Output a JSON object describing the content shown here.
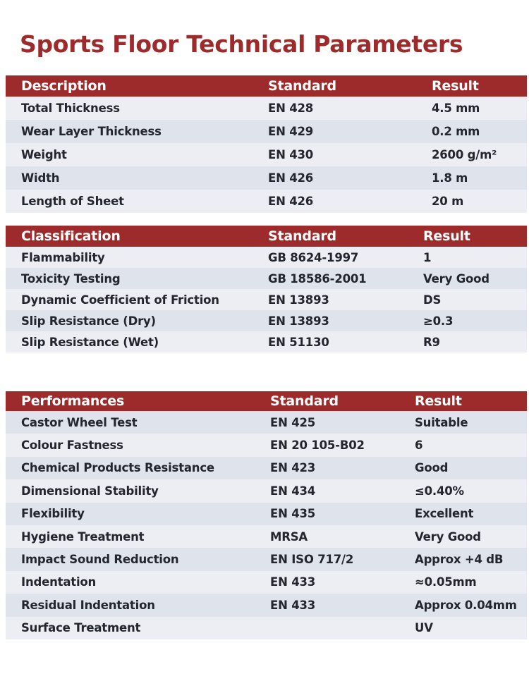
{
  "page": {
    "title": "Sports Floor Technical Parameters"
  },
  "colors": {
    "accent_red": "#9E2B2B",
    "row_light": "#ECEEF3",
    "row_dark": "#DEE3EC",
    "text_dark": "#23262E",
    "header_text": "#FFFFFF",
    "page_background": "#FFFFFF"
  },
  "tables": [
    {
      "name": "description",
      "headers": [
        "Description",
        "Standard",
        "Result"
      ],
      "rows": [
        [
          "Total Thickness",
          "EN 428",
          "4.5 mm"
        ],
        [
          "Wear Layer Thickness",
          "EN 429",
          "0.2 mm"
        ],
        [
          "Weight",
          "EN 430",
          "2600 g/m²"
        ],
        [
          "Width",
          "EN 426",
          "1.8 m"
        ],
        [
          "Length of Sheet",
          "EN 426",
          "20 m"
        ]
      ]
    },
    {
      "name": "classification",
      "headers": [
        "Classification",
        "Standard",
        "Result"
      ],
      "rows": [
        [
          "Flammability",
          "GB 8624-1997",
          "1"
        ],
        [
          "Toxicity Testing",
          "GB 18586-2001",
          "Very Good"
        ],
        [
          "Dynamic Coefficient of Friction",
          "EN 13893",
          "DS"
        ],
        [
          "Slip Resistance (Dry)",
          "EN 13893",
          "≥0.3"
        ],
        [
          "Slip Resistance (Wet)",
          "EN 51130",
          "R9"
        ]
      ]
    },
    {
      "name": "performances",
      "headers": [
        "Performances",
        "Standard",
        "Result"
      ],
      "rows": [
        [
          "Castor Wheel Test",
          "EN 425",
          "Suitable"
        ],
        [
          "Colour Fastness",
          "EN 20 105-B02",
          "6"
        ],
        [
          "Chemical Products Resistance",
          "EN 423",
          "Good"
        ],
        [
          "Dimensional Stability",
          "EN 434",
          "≤0.40%"
        ],
        [
          "Flexibility",
          "EN 435",
          "Excellent"
        ],
        [
          "Hygiene Treatment",
          "MRSA",
          "Very Good"
        ],
        [
          "Impact Sound Reduction",
          "EN ISO 717/2",
          "Approx +4 dB"
        ],
        [
          "Indentation",
          "EN 433",
          "≈0.05mm"
        ],
        [
          "Residual Indentation",
          "EN 433",
          "Approx 0.04mm"
        ],
        [
          "Surface Treatment",
          "",
          "UV"
        ]
      ]
    }
  ]
}
